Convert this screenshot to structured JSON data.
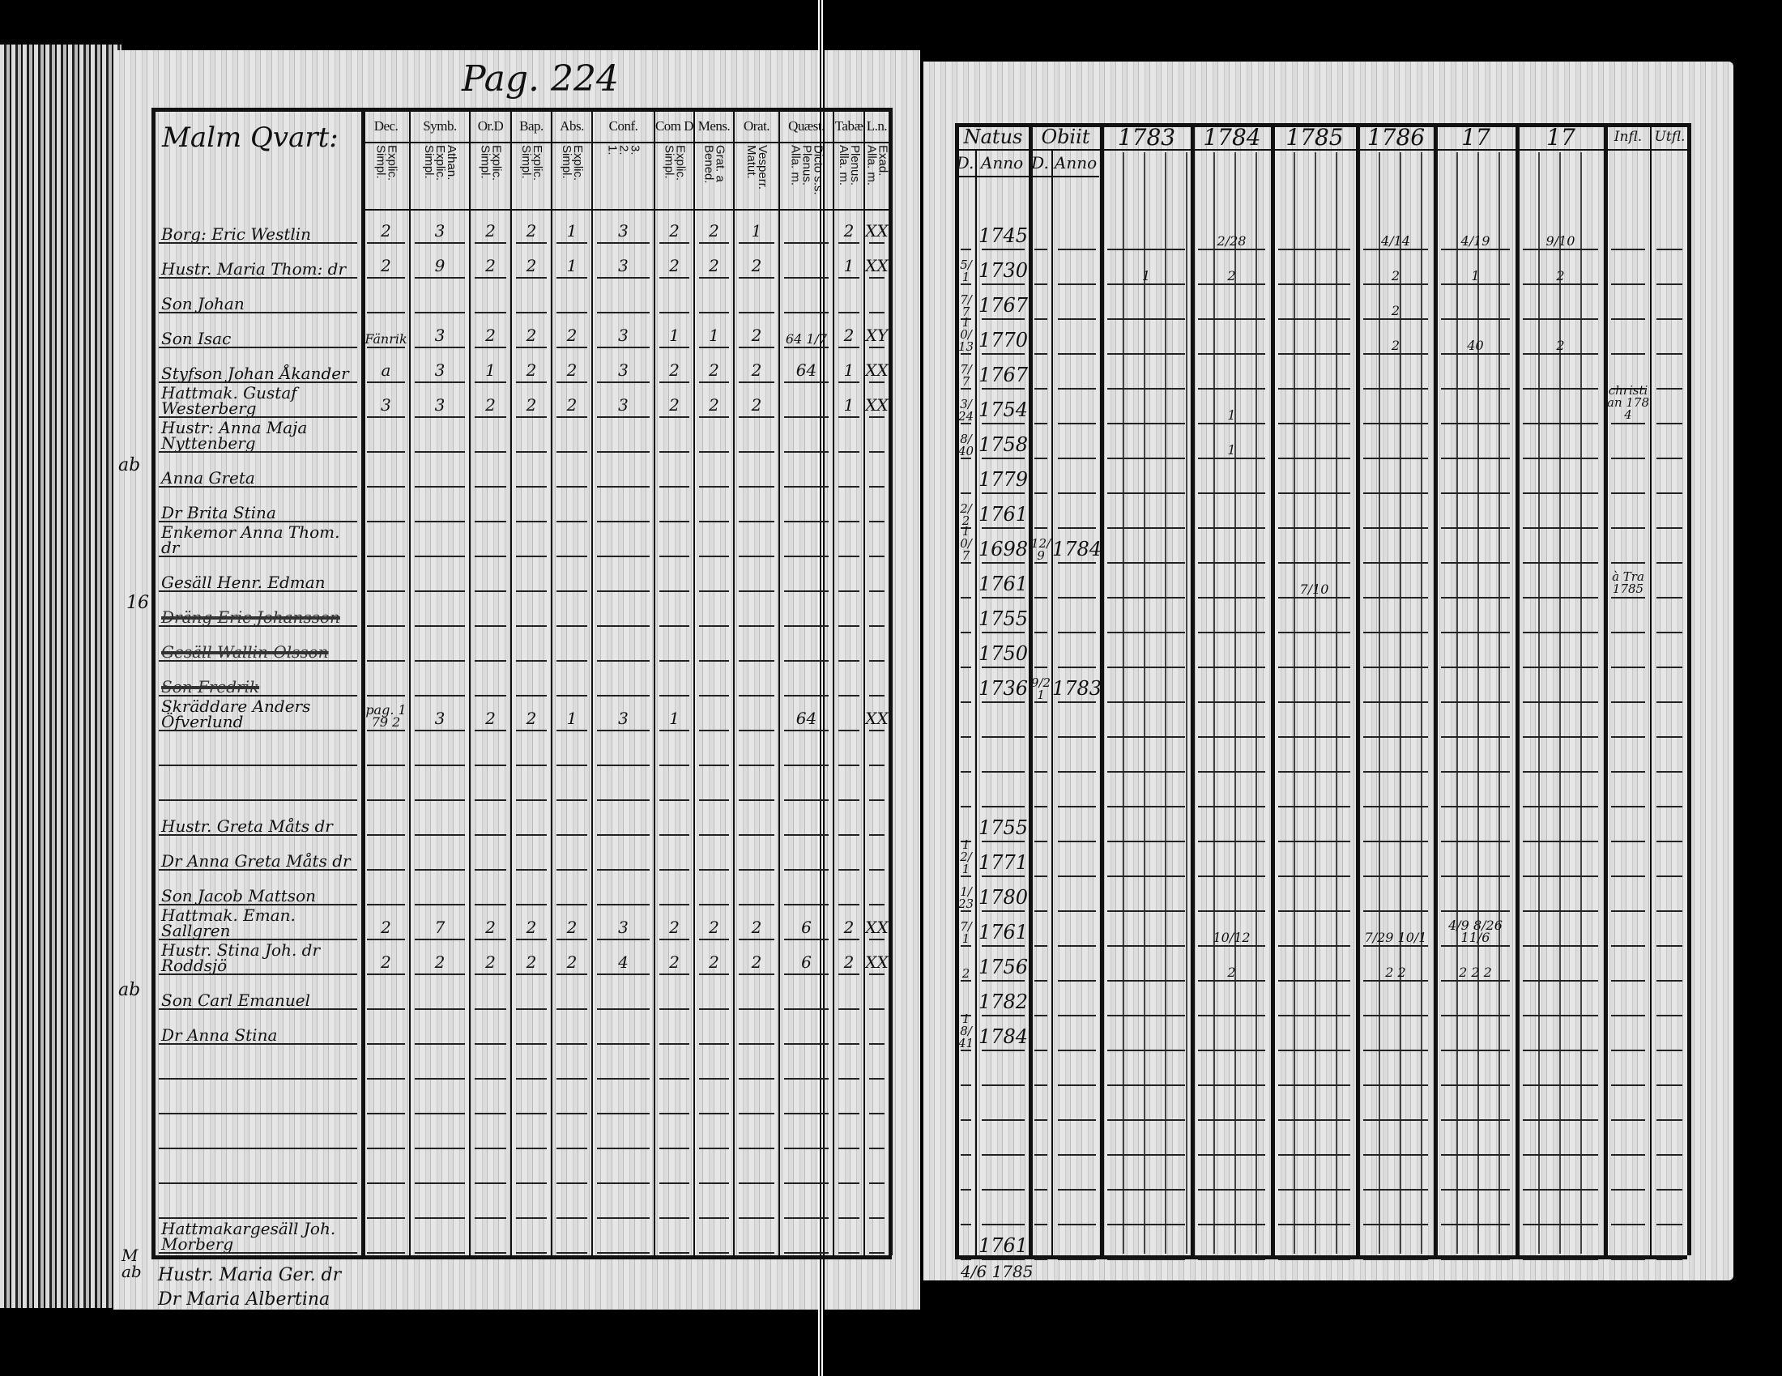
{
  "left_page": {
    "page_number": "Pag. 224",
    "district": "Malm Qvart:",
    "columns": [
      {
        "label": "Dec.",
        "sub": [
          "Simpl.",
          "Explic."
        ]
      },
      {
        "label": "Symb.",
        "sub": [
          "Simpl.",
          "Explic.",
          "Athan."
        ]
      },
      {
        "label": "Or.D",
        "sub": [
          "Simpl.",
          "Explic."
        ]
      },
      {
        "label": "Bap.",
        "sub": [
          "Simpl.",
          "Explic."
        ]
      },
      {
        "label": "Abs.",
        "sub": [
          "Simpl.",
          "Explic."
        ]
      },
      {
        "label": "Conf.",
        "sub": [
          "1.",
          "2.",
          "3."
        ]
      },
      {
        "label": "Com D",
        "sub": [
          "Simpl.",
          "Explic."
        ]
      },
      {
        "label": "Mens.",
        "sub": [
          "Bened.",
          "Grat. a"
        ]
      },
      {
        "label": "Orat.",
        "sub": [
          "Matut.",
          "Vesperr."
        ]
      },
      {
        "label": "Quæst.",
        "sub": [
          "Alla. m.",
          "Plenus.",
          "Dicto s.s."
        ]
      },
      {
        "label": "Tabæ",
        "sub": [
          "Alla. m.",
          "Plenus."
        ]
      },
      {
        "label": "L.n.",
        "sub": [
          "Alla. m.",
          "Exad."
        ]
      }
    ],
    "margin_notes": [
      "ab",
      "16",
      "ab"
    ],
    "below_table": [
      "Hustr. Maria Ger. dr",
      "Dr Maria Albertina"
    ],
    "below_margin": "M ab"
  },
  "right_page": {
    "columns": [
      {
        "label": "Natus",
        "sub": [
          "D.",
          "Anno"
        ]
      },
      {
        "label": "Obiit",
        "sub": [
          "D.",
          "Anno"
        ]
      },
      {
        "label": "1783"
      },
      {
        "label": "1784"
      },
      {
        "label": "1785"
      },
      {
        "label": "1786"
      },
      {
        "label": "17"
      },
      {
        "label": "17"
      },
      {
        "label": "Infl."
      },
      {
        "label": "Utfl."
      }
    ],
    "below_table": "4/6 1785"
  },
  "rows": [
    {
      "name": "Borg: Eric Westlin",
      "marks": [
        "2",
        "3",
        "2",
        "2",
        "1",
        "3",
        "2",
        "2",
        "1",
        "",
        "2",
        "XX"
      ],
      "natus_d": "",
      "natus_anno": "1745",
      "obiit_d": "",
      "obiit_anno": "",
      "years": [
        "",
        "2/28",
        "",
        "4/14",
        "4/19",
        "9/10"
      ],
      "in": "",
      "out": ""
    },
    {
      "name": "Hustr. Maria Thom: dr",
      "marks": [
        "2",
        "9",
        "2",
        "2",
        "1",
        "3",
        "2",
        "2",
        "2",
        "",
        "1",
        "XX"
      ],
      "natus_d": "5/1",
      "natus_anno": "1730",
      "obiit_d": "",
      "obiit_anno": "",
      "years": [
        "1",
        "2",
        "",
        "2",
        "1",
        "2"
      ],
      "in": "",
      "out": ""
    },
    {
      "name": "Son Johan",
      "marks": [
        "",
        "",
        "",
        "",
        "",
        "",
        "",
        "",
        "",
        "",
        "",
        ""
      ],
      "natus_d": "7/7",
      "natus_anno": "1767",
      "obiit_d": "",
      "obiit_anno": "",
      "years": [
        "",
        "",
        "",
        "2",
        "",
        ""
      ],
      "in": "",
      "out": ""
    },
    {
      "name": "Son Isac",
      "marks": [
        "Fänrik",
        "3",
        "2",
        "2",
        "2",
        "3",
        "1",
        "1",
        "2",
        "64 1/7",
        "2",
        "XY"
      ],
      "natus_d": "10/13",
      "natus_anno": "1770",
      "obiit_d": "",
      "obiit_anno": "",
      "years": [
        "",
        "",
        "",
        "2",
        "40",
        "2"
      ],
      "in": "",
      "out": ""
    },
    {
      "name": "Styfson Johan Åkander",
      "marks": [
        "a",
        "3",
        "1",
        "2",
        "2",
        "3",
        "2",
        "2",
        "2",
        "64",
        "1",
        "XX"
      ],
      "natus_d": "7/7",
      "natus_anno": "1767",
      "obiit_d": "",
      "obiit_anno": "",
      "years": [
        "",
        "",
        "",
        "",
        "",
        ""
      ],
      "in": "",
      "out": ""
    },
    {
      "name": "Hattmak. Gustaf Westerberg",
      "marks": [
        "3",
        "3",
        "2",
        "2",
        "2",
        "3",
        "2",
        "2",
        "2",
        "",
        "1",
        "XX"
      ],
      "natus_d": "3/24",
      "natus_anno": "1754",
      "obiit_d": "",
      "obiit_anno": "",
      "years": [
        "",
        "1",
        "",
        "",
        "",
        ""
      ],
      "in": "christian 1784",
      "out": ""
    },
    {
      "name": "Hustr: Anna Maja Nyttenberg",
      "marks": [
        "",
        "",
        "",
        "",
        "",
        "",
        "",
        "",
        "",
        "",
        "",
        ""
      ],
      "natus_d": "8/40",
      "natus_anno": "1758",
      "obiit_d": "",
      "obiit_anno": "",
      "years": [
        "",
        "1",
        "",
        "",
        "",
        ""
      ],
      "in": "",
      "out": ""
    },
    {
      "name": "Anna Greta",
      "marks": [
        "",
        "",
        "",
        "",
        "",
        "",
        "",
        "",
        "",
        "",
        "",
        ""
      ],
      "natus_d": "",
      "natus_anno": "1779",
      "obiit_d": "",
      "obiit_anno": "",
      "years": [
        "",
        "",
        "",
        "",
        "",
        ""
      ],
      "in": "",
      "out": ""
    },
    {
      "name": "Dr Brita Stina",
      "marks": [
        "",
        "",
        "",
        "",
        "",
        "",
        "",
        "",
        "",
        "",
        "",
        ""
      ],
      "natus_d": "2/2",
      "natus_anno": "1761",
      "obiit_d": "",
      "obiit_anno": "",
      "years": [
        "",
        "",
        "",
        "",
        "",
        ""
      ],
      "in": "",
      "out": ""
    },
    {
      "name": "Enkemor Anna Thom. dr",
      "marks": [
        "",
        "",
        "",
        "",
        "",
        "",
        "",
        "",
        "",
        "",
        "",
        ""
      ],
      "natus_d": "10/7",
      "natus_anno": "1698",
      "obiit_d": "12/9",
      "obiit_anno": "1784",
      "years": [
        "",
        "",
        "",
        "",
        "",
        ""
      ],
      "in": "",
      "out": ""
    },
    {
      "name": "Gesäll Henr. Edman",
      "marks": [
        "",
        "",
        "",
        "",
        "",
        "",
        "",
        "",
        "",
        "",
        "",
        ""
      ],
      "natus_d": "",
      "natus_anno": "1761",
      "obiit_d": "",
      "obiit_anno": "",
      "years": [
        "",
        "",
        "7/10",
        "",
        "",
        ""
      ],
      "in": "à Tra 1785",
      "out": ""
    },
    {
      "name": "Dräng Eric Johansson",
      "struck": true,
      "marks": [
        "",
        "",
        "",
        "",
        "",
        "",
        "",
        "",
        "",
        "",
        "",
        ""
      ],
      "natus_d": "",
      "natus_anno": "1755",
      "obiit_d": "",
      "obiit_anno": "",
      "years": [
        "",
        "",
        "",
        "",
        "",
        ""
      ],
      "in": "",
      "out": ""
    },
    {
      "name": "Gesäll Wallin Olsson",
      "struck": true,
      "marks": [
        "",
        "",
        "",
        "",
        "",
        "",
        "",
        "",
        "",
        "",
        "",
        ""
      ],
      "natus_d": "",
      "natus_anno": "1750",
      "obiit_d": "",
      "obiit_anno": "",
      "years": [
        "",
        "",
        "",
        "",
        "",
        ""
      ],
      "in": "",
      "out": ""
    },
    {
      "name": "Son Fredrik",
      "struck": true,
      "marks": [
        "",
        "",
        "",
        "",
        "",
        "",
        "",
        "",
        "",
        "",
        "",
        ""
      ],
      "natus_d": "",
      "natus_anno": "1736",
      "obiit_d": "9/21",
      "obiit_anno": "1783",
      "years": [
        "",
        "",
        "",
        "",
        "",
        ""
      ],
      "in": "",
      "out": ""
    },
    {
      "name": "Skräddare Anders Öfverlund",
      "marks": [
        "pag. 179 2",
        "3",
        "2",
        "2",
        "1",
        "3",
        "1",
        "",
        "",
        "64",
        "",
        "XX"
      ],
      "natus_d": "",
      "natus_anno": "",
      "obiit_d": "",
      "obiit_anno": "",
      "years": [
        "",
        "",
        "",
        "",
        "",
        ""
      ],
      "in": "",
      "out": ""
    },
    {
      "name": "",
      "marks": [
        "",
        "",
        "",
        "",
        "",
        "",
        "",
        "",
        "",
        "",
        "",
        ""
      ],
      "natus_d": "",
      "natus_anno": "",
      "obiit_d": "",
      "obiit_anno": "",
      "years": [
        "",
        "",
        "",
        "",
        "",
        ""
      ],
      "in": "",
      "out": ""
    },
    {
      "name": "",
      "marks": [
        "",
        "",
        "",
        "",
        "",
        "",
        "",
        "",
        "",
        "",
        "",
        ""
      ],
      "natus_d": "",
      "natus_anno": "",
      "obiit_d": "",
      "obiit_anno": "",
      "years": [
        "",
        "",
        "",
        "",
        "",
        ""
      ],
      "in": "",
      "out": ""
    },
    {
      "name": "Hustr. Greta Måts dr",
      "marks": [
        "",
        "",
        "",
        "",
        "",
        "",
        "",
        "",
        "",
        "",
        "",
        ""
      ],
      "natus_d": "",
      "natus_anno": "1755",
      "obiit_d": "",
      "obiit_anno": "",
      "years": [
        "",
        "",
        "",
        "",
        "",
        ""
      ],
      "in": "",
      "out": ""
    },
    {
      "name": "Dr Anna Greta Måts dr",
      "marks": [
        "",
        "",
        "",
        "",
        "",
        "",
        "",
        "",
        "",
        "",
        "",
        ""
      ],
      "natus_d": "12/1",
      "natus_anno": "1771",
      "obiit_d": "",
      "obiit_anno": "",
      "years": [
        "",
        "",
        "",
        "",
        "",
        ""
      ],
      "in": "",
      "out": ""
    },
    {
      "name": "Son Jacob Mattson",
      "marks": [
        "",
        "",
        "",
        "",
        "",
        "",
        "",
        "",
        "",
        "",
        "",
        ""
      ],
      "natus_d": "1/23",
      "natus_anno": "1780",
      "obiit_d": "",
      "obiit_anno": "",
      "years": [
        "",
        "",
        "",
        "",
        "",
        ""
      ],
      "in": "",
      "out": ""
    },
    {
      "name": "Hattmak. Eman. Sallgren",
      "marks": [
        "2",
        "7",
        "2",
        "2",
        "2",
        "3",
        "2",
        "2",
        "2",
        "6",
        "2",
        "XX"
      ],
      "natus_d": "7/1",
      "natus_anno": "1761",
      "obiit_d": "",
      "obiit_anno": "",
      "years": [
        "",
        "10/12",
        "",
        "7/29 10/1",
        "4/9 8/26 11/6",
        ""
      ],
      "in": "",
      "out": ""
    },
    {
      "name": "Hustr. Stina Joh. dr Roddsjö",
      "marks": [
        "2",
        "2",
        "2",
        "2",
        "2",
        "4",
        "2",
        "2",
        "2",
        "6",
        "2",
        "XX"
      ],
      "natus_d": "2",
      "natus_anno": "1756",
      "obiit_d": "",
      "obiit_anno": "",
      "years": [
        "",
        "2",
        "",
        "2 2",
        "2 2 2",
        ""
      ],
      "in": "",
      "out": ""
    },
    {
      "name": "Son Carl Emanuel",
      "marks": [
        "",
        "",
        "",
        "",
        "",
        "",
        "",
        "",
        "",
        "",
        "",
        ""
      ],
      "natus_d": "",
      "natus_anno": "1782",
      "obiit_d": "",
      "obiit_anno": "",
      "years": [
        "",
        "",
        "",
        "",
        "",
        ""
      ],
      "in": "",
      "out": ""
    },
    {
      "name": "Dr Anna Stina",
      "marks": [
        "",
        "",
        "",
        "",
        "",
        "",
        "",
        "",
        "",
        "",
        "",
        ""
      ],
      "natus_d": "18/41",
      "natus_anno": "1784",
      "obiit_d": "",
      "obiit_anno": "",
      "years": [
        "",
        "",
        "",
        "",
        "",
        ""
      ],
      "in": "",
      "out": ""
    },
    {
      "name": "",
      "marks": [
        "",
        "",
        "",
        "",
        "",
        "",
        "",
        "",
        "",
        "",
        "",
        ""
      ],
      "natus_d": "",
      "natus_anno": "",
      "obiit_d": "",
      "obiit_anno": "",
      "years": [
        "",
        "",
        "",
        "",
        "",
        ""
      ],
      "in": "",
      "out": ""
    },
    {
      "name": "",
      "marks": [
        "",
        "",
        "",
        "",
        "",
        "",
        "",
        "",
        "",
        "",
        "",
        ""
      ],
      "natus_d": "",
      "natus_anno": "",
      "obiit_d": "",
      "obiit_anno": "",
      "years": [
        "",
        "",
        "",
        "",
        "",
        ""
      ],
      "in": "",
      "out": ""
    },
    {
      "name": "",
      "marks": [
        "",
        "",
        "",
        "",
        "",
        "",
        "",
        "",
        "",
        "",
        "",
        ""
      ],
      "natus_d": "",
      "natus_anno": "",
      "obiit_d": "",
      "obiit_anno": "",
      "years": [
        "",
        "",
        "",
        "",
        "",
        ""
      ],
      "in": "",
      "out": ""
    },
    {
      "name": "",
      "marks": [
        "",
        "",
        "",
        "",
        "",
        "",
        "",
        "",
        "",
        "",
        "",
        ""
      ],
      "natus_d": "",
      "natus_anno": "",
      "obiit_d": "",
      "obiit_anno": "",
      "years": [
        "",
        "",
        "",
        "",
        "",
        ""
      ],
      "in": "",
      "out": ""
    },
    {
      "name": "",
      "marks": [
        "",
        "",
        "",
        "",
        "",
        "",
        "",
        "",
        "",
        "",
        "",
        ""
      ],
      "natus_d": "",
      "natus_anno": "",
      "obiit_d": "",
      "obiit_anno": "",
      "years": [
        "",
        "",
        "",
        "",
        "",
        ""
      ],
      "in": "",
      "out": ""
    },
    {
      "name": "Hattmakargesäll Joh. Morberg",
      "marks": [
        "",
        "",
        "",
        "",
        "",
        "",
        "",
        "",
        "",
        "",
        "",
        ""
      ],
      "natus_d": "",
      "natus_anno": "1761",
      "obiit_d": "",
      "obiit_anno": "",
      "years": [
        "",
        "",
        "",
        "",
        "",
        ""
      ],
      "in": "",
      "out": ""
    }
  ]
}
